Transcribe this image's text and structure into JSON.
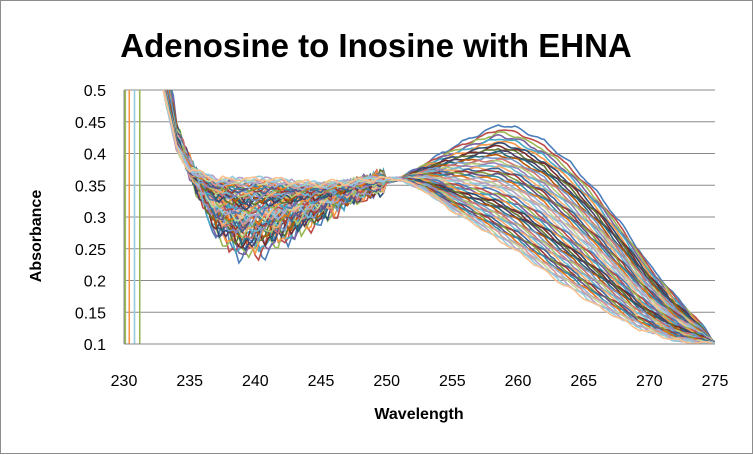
{
  "chart_data": {
    "type": "line",
    "title": "Adenosine to Inosine with EHNA",
    "xlabel": "Wavelength",
    "ylabel": "Absorbance",
    "xlim": [
      230,
      275
    ],
    "ylim": [
      0.1,
      0.5
    ],
    "x_ticks": [
      "230",
      "235",
      "240",
      "245",
      "250",
      "255",
      "260",
      "265",
      "270",
      "275"
    ],
    "y_ticks": [
      "0.1",
      "0.15",
      "0.2",
      "0.25",
      "0.3",
      "0.35",
      "0.4",
      "0.45",
      "0.5"
    ],
    "grid": "horizontal",
    "legend": "none",
    "series_count": 60,
    "isosbestic_point": {
      "x": 251,
      "y": 0.36
    },
    "envelope": {
      "first_scan": {
        "x": [
          233,
          235,
          237,
          239,
          241,
          243,
          245,
          247,
          249,
          251,
          253,
          255,
          257,
          258.5,
          260,
          262,
          264,
          266,
          268,
          270,
          272,
          274,
          275
        ],
        "y": [
          0.5,
          0.38,
          0.28,
          0.245,
          0.255,
          0.28,
          0.305,
          0.33,
          0.35,
          0.36,
          0.385,
          0.41,
          0.43,
          0.445,
          0.44,
          0.42,
          0.385,
          0.34,
          0.285,
          0.225,
          0.175,
          0.13,
          0.1
        ]
      },
      "last_scan": {
        "x": [
          233,
          235,
          237,
          239,
          241,
          243,
          245,
          247,
          249,
          251,
          253,
          255,
          257,
          260,
          263,
          266,
          269,
          272,
          275
        ],
        "y": [
          0.44,
          0.375,
          0.36,
          0.36,
          0.36,
          0.355,
          0.352,
          0.355,
          0.36,
          0.36,
          0.34,
          0.31,
          0.285,
          0.245,
          0.2,
          0.16,
          0.125,
          0.105,
          0.1
        ]
      }
    },
    "colors": [
      "#4a7ebb",
      "#be4b48",
      "#98b954",
      "#7d60a0",
      "#46aac5",
      "#f79646",
      "#2c4d75",
      "#772c2a",
      "#5f7530",
      "#4d3b62",
      "#276a7c",
      "#b65708",
      "#729aca",
      "#cd7371",
      "#afc97a",
      "#9983b5",
      "#6fbdd1",
      "#f9ab6b",
      "#3a679c",
      "#9f3b38",
      "#7f9c40",
      "#664f83",
      "#358ea6",
      "#e8751a",
      "#95b3d7",
      "#d99694",
      "#c3d69b",
      "#b3a2c7",
      "#93cddd",
      "#fac090"
    ]
  }
}
